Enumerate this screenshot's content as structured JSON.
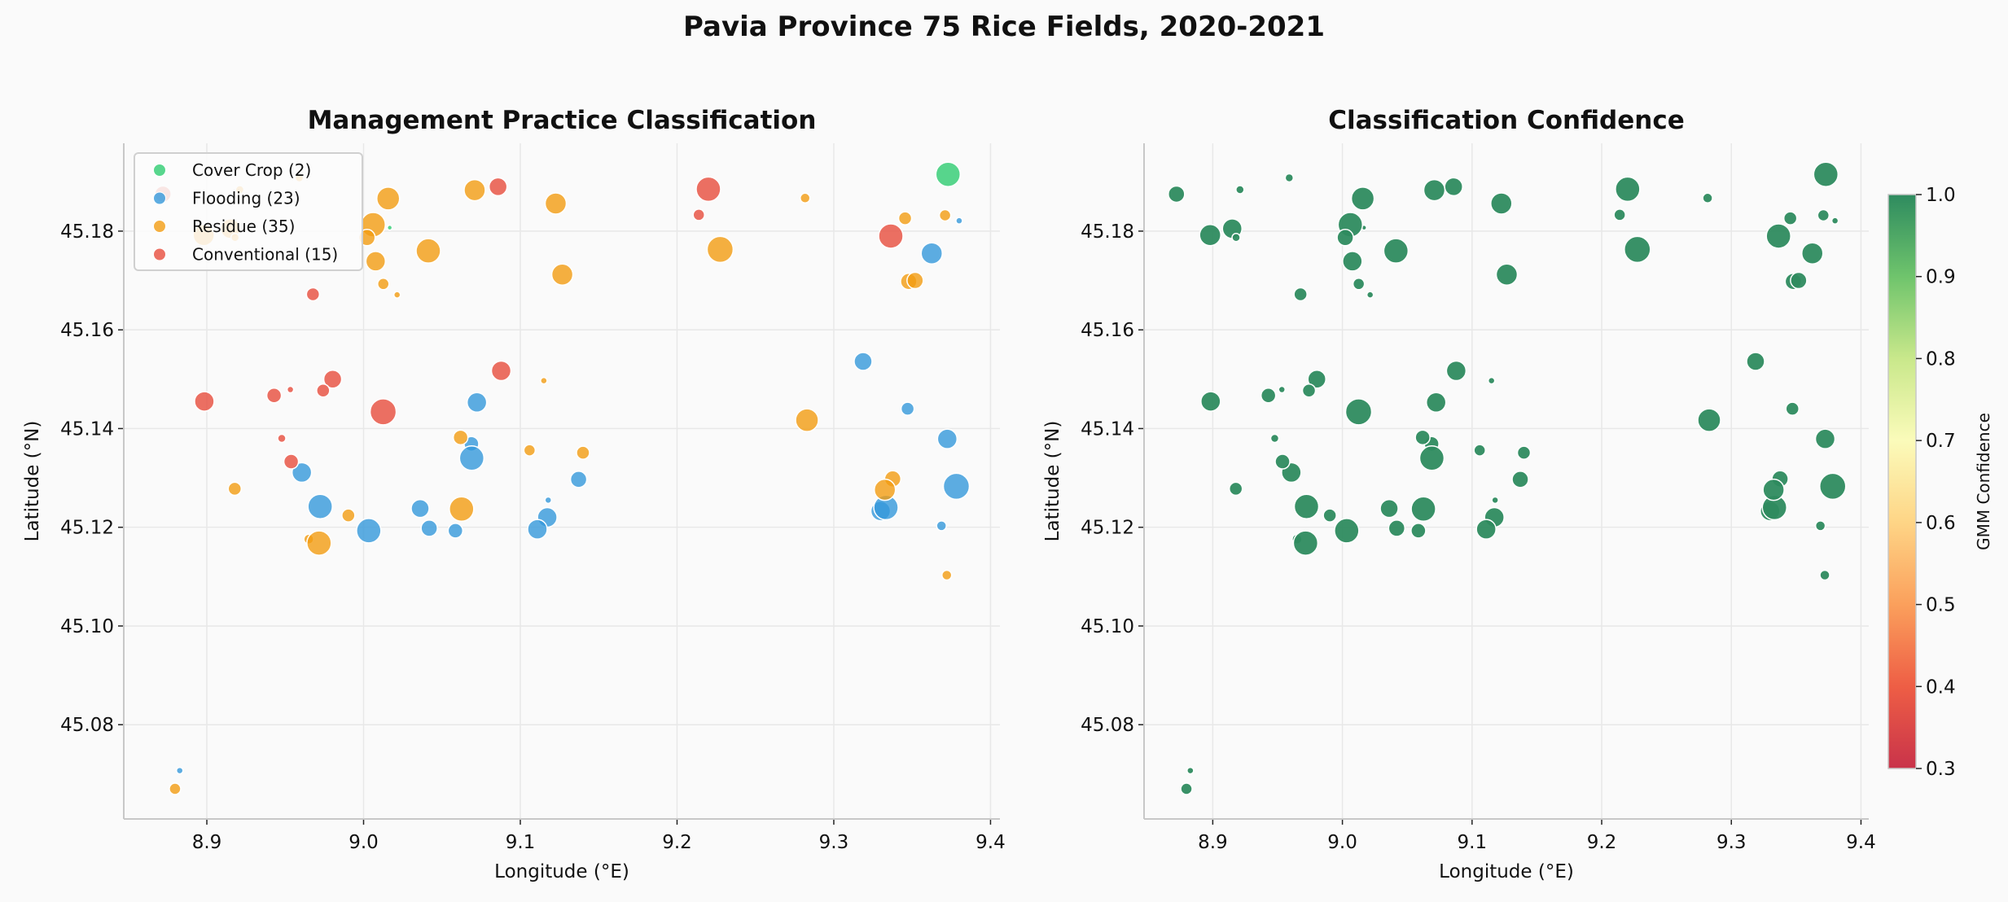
{
  "suptitle": "Pavia Province 75 Rice Fields, 2020-2021",
  "chart_data": [
    {
      "type": "scatter",
      "title": "Management Practice Classification",
      "xlabel": "Longitude (°E)",
      "ylabel": "Latitude (°N)",
      "xlim": [
        8.847,
        9.406
      ],
      "ylim": [
        45.0609,
        45.1978
      ],
      "xticks": [
        "8.9",
        "9.0",
        "9.1",
        "9.2",
        "9.3",
        "9.4"
      ],
      "yticks": [
        "45.08",
        "45.10",
        "45.12",
        "45.14",
        "45.16",
        "45.18"
      ],
      "grid": true,
      "legend": "upper-left",
      "point_format": [
        "longitude",
        "latitude",
        "marker_size"
      ],
      "series": [
        {
          "name": "Cover Crop (2)",
          "color": "#2ecc71",
          "points": [
            [
              9.3729,
              45.1915,
              15
            ],
            [
              9.0167,
              45.1807,
              3
            ]
          ]
        },
        {
          "name": "Flooding (23)",
          "color": "#3498db",
          "points": [
            [
              9.0723,
              45.1453,
              12
            ],
            [
              9.0688,
              45.1369,
              9
            ],
            [
              9.069,
              45.134,
              15
            ],
            [
              9.38,
              45.1821,
              4
            ],
            [
              9.3625,
              45.1755,
              13
            ],
            [
              9.3187,
              45.1536,
              11
            ],
            [
              9.3471,
              45.144,
              8
            ],
            [
              9.3724,
              45.1379,
              12
            ],
            [
              8.9606,
              45.1311,
              12
            ],
            [
              8.9723,
              45.1242,
              15
            ],
            [
              9.0033,
              45.1193,
              15
            ],
            [
              9.0361,
              45.1238,
              11
            ],
            [
              9.0419,
              45.1198,
              10
            ],
            [
              9.0586,
              45.1193,
              9
            ],
            [
              9.1178,
              45.1255,
              4
            ],
            [
              9.1172,
              45.122,
              12
            ],
            [
              9.1109,
              45.1196,
              12
            ],
            [
              9.1372,
              45.1297,
              10
            ],
            [
              9.3299,
              45.1233,
              12
            ],
            [
              9.3333,
              45.124,
              15
            ],
            [
              9.3782,
              45.1283,
              16
            ],
            [
              9.3687,
              45.1203,
              6
            ],
            [
              8.8827,
              45.0707,
              4
            ]
          ]
        },
        {
          "name": "Residue (35)",
          "color": "#f39c12",
          "points": [
            [
              8.959,
              45.1908,
              5
            ],
            [
              8.921,
              45.1884,
              5
            ],
            [
              8.898,
              45.1792,
              13
            ],
            [
              8.915,
              45.1805,
              12
            ],
            [
              8.918,
              45.1787,
              5
            ],
            [
              9.0157,
              45.1866,
              14
            ],
            [
              9.0061,
              45.1813,
              15
            ],
            [
              9.0022,
              45.1787,
              10
            ],
            [
              9.0413,
              45.176,
              15
            ],
            [
              9.0077,
              45.1739,
              12
            ],
            [
              9.0126,
              45.1693,
              7
            ],
            [
              9.0214,
              45.1671,
              4
            ],
            [
              9.0709,
              45.1883,
              13
            ],
            [
              9.1226,
              45.1856,
              13
            ],
            [
              9.1268,
              45.1712,
              13
            ],
            [
              9.115,
              45.1497,
              4
            ],
            [
              9.0619,
              45.1382,
              9
            ],
            [
              9.1059,
              45.1356,
              7
            ],
            [
              9.14,
              45.1351,
              8
            ],
            [
              9.2817,
              45.1867,
              6
            ],
            [
              9.3455,
              45.1826,
              8
            ],
            [
              9.371,
              45.1832,
              7
            ],
            [
              9.2275,
              45.1763,
              16
            ],
            [
              9.3478,
              45.1698,
              10
            ],
            [
              9.3519,
              45.17,
              10
            ],
            [
              9.2829,
              45.1417,
              14
            ],
            [
              8.9178,
              45.1278,
              8
            ],
            [
              8.9903,
              45.1224,
              8
            ],
            [
              8.965,
              45.1176,
              6
            ],
            [
              8.9716,
              45.1168,
              15
            ],
            [
              9.0625,
              45.1237,
              15
            ],
            [
              9.3376,
              45.1298,
              10
            ],
            [
              9.3326,
              45.1276,
              13
            ],
            [
              9.3721,
              45.1103,
              6
            ],
            [
              8.8797,
              45.067,
              7
            ]
          ]
        },
        {
          "name": "Conventional (15)",
          "color": "#e74c3c",
          "points": [
            [
              8.872,
              45.1875,
              10
            ],
            [
              8.9677,
              45.1672,
              8
            ],
            [
              8.9803,
              45.15,
              11
            ],
            [
              9.0858,
              45.189,
              11
            ],
            [
              9.0878,
              45.1517,
              12
            ],
            [
              8.8984,
              45.1455,
              12
            ],
            [
              8.9429,
              45.1467,
              9
            ],
            [
              8.9533,
              45.1479,
              4
            ],
            [
              8.9742,
              45.1477,
              8
            ],
            [
              9.0125,
              45.1434,
              16
            ],
            [
              8.9478,
              45.138,
              5
            ],
            [
              8.9538,
              45.1333,
              9
            ],
            [
              9.22,
              45.1885,
              15
            ],
            [
              9.2139,
              45.1833,
              7
            ],
            [
              9.3364,
              45.179,
              15
            ]
          ]
        }
      ]
    },
    {
      "type": "scatter",
      "title": "Classification Confidence",
      "xlabel": "Longitude (°E)",
      "ylabel": "Latitude (°N)",
      "xlim": [
        8.847,
        9.406
      ],
      "ylim": [
        45.0609,
        45.1978
      ],
      "xticks": [
        "8.9",
        "9.0",
        "9.1",
        "9.2",
        "9.3",
        "9.4"
      ],
      "yticks": [
        "45.08",
        "45.10",
        "45.12",
        "45.14",
        "45.16",
        "45.18"
      ],
      "grid": true,
      "points_source": "same fields as chart 1, in order",
      "confidence": 1.0,
      "colorbar": {
        "label": "GMM Confidence",
        "cmap": "RdYlGn",
        "range": [
          0.3,
          1.0
        ],
        "ticks": [
          "0.3",
          "0.4",
          "0.5",
          "0.6",
          "0.7",
          "0.8",
          "0.9",
          "1.0"
        ]
      }
    }
  ]
}
